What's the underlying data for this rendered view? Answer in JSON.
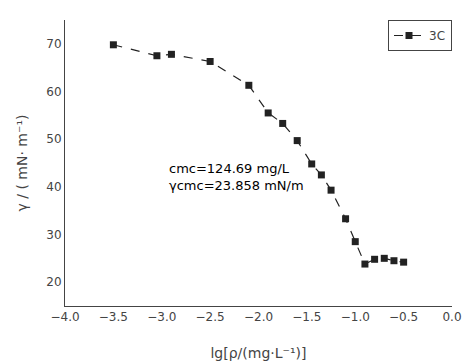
{
  "chart_data": {
    "type": "line",
    "x": [
      -3.5,
      -3.05,
      -2.9,
      -2.5,
      -2.1,
      -1.9,
      -1.75,
      -1.6,
      -1.45,
      -1.35,
      -1.25,
      -1.1,
      -1.0,
      -0.9,
      -0.8,
      -0.7,
      -0.6,
      -0.5
    ],
    "series": [
      {
        "name": "3C",
        "color": "#222222",
        "marker": "square",
        "line_style": "dashed",
        "values": [
          69.8,
          67.5,
          67.8,
          66.3,
          61.3,
          55.5,
          53.3,
          49.7,
          44.8,
          42.5,
          39.3,
          33.3,
          28.5,
          23.8,
          24.8,
          25.0,
          24.5,
          24.2
        ]
      }
    ],
    "xlabel": "lg[ρ/(mg·L⁻¹)]",
    "ylabel": "γ / ( mN· m⁻¹)",
    "xlim": [
      -4.0,
      0.0
    ],
    "ylim": [
      15,
      75
    ],
    "xticks": [
      {
        "value": -4.0,
        "label": "−4.0"
      },
      {
        "value": -3.5,
        "label": "−3.5"
      },
      {
        "value": -3.0,
        "label": "−3.0"
      },
      {
        "value": -2.5,
        "label": "−2.5"
      },
      {
        "value": -2.0,
        "label": "−2.0"
      },
      {
        "value": -1.5,
        "label": "−1.5"
      },
      {
        "value": -1.0,
        "label": "−1.0"
      },
      {
        "value": -0.5,
        "label": "−0.5"
      },
      {
        "value": 0.0,
        "label": "0.0"
      }
    ],
    "yticks": [
      20,
      30,
      40,
      50,
      60,
      70
    ],
    "annotations": [
      {
        "x": -2.95,
        "y": 42.0,
        "lines": [
          "cmc=124.69 mg/L",
          "γcmc=23.858 mN/m"
        ]
      }
    ],
    "legend": "upper right",
    "grid": false
  }
}
